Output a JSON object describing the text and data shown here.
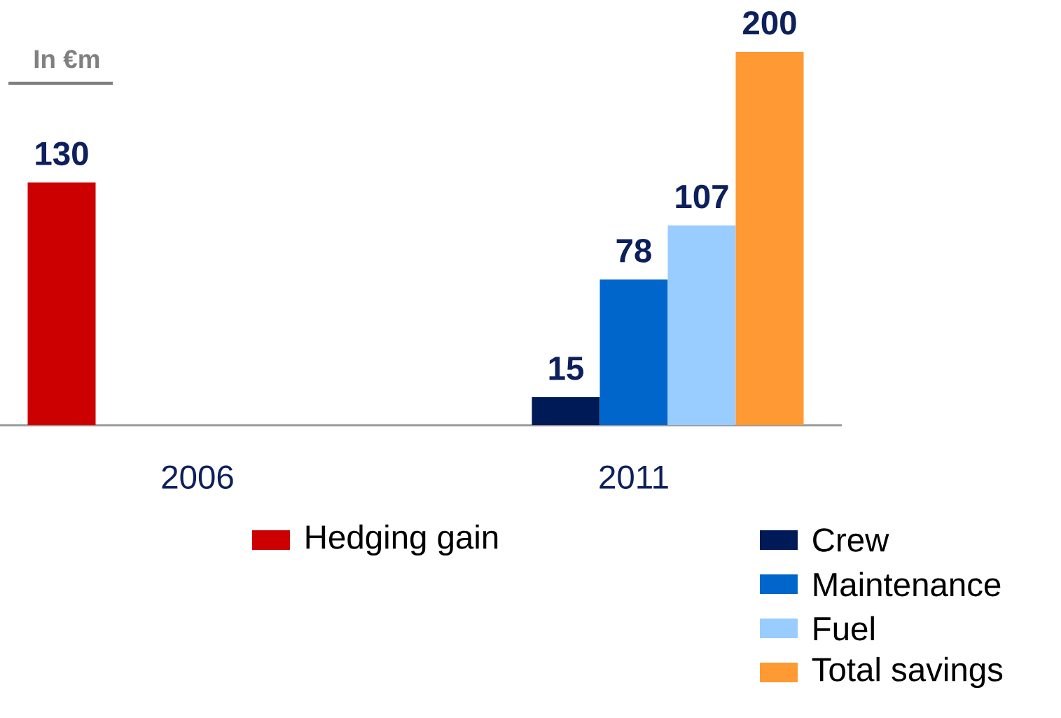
{
  "chart_data": {
    "type": "bar",
    "ylabel": "In €m",
    "categories": [
      "2006",
      "2011"
    ],
    "data_labels": true,
    "legend": "bottom",
    "series": [
      {
        "name": "Hedging gain",
        "color": "#cc0000",
        "values": [
          130,
          null
        ]
      },
      {
        "name": "Crew",
        "color": "#001a57",
        "values": [
          null,
          15
        ]
      },
      {
        "name": "Maintenance",
        "color": "#0066cc",
        "values": [
          null,
          78
        ]
      },
      {
        "name": "Fuel",
        "color": "#99ccff",
        "values": [
          null,
          107
        ]
      },
      {
        "name": "Total savings",
        "color": "#ff9933",
        "values": [
          null,
          200
        ]
      }
    ]
  }
}
